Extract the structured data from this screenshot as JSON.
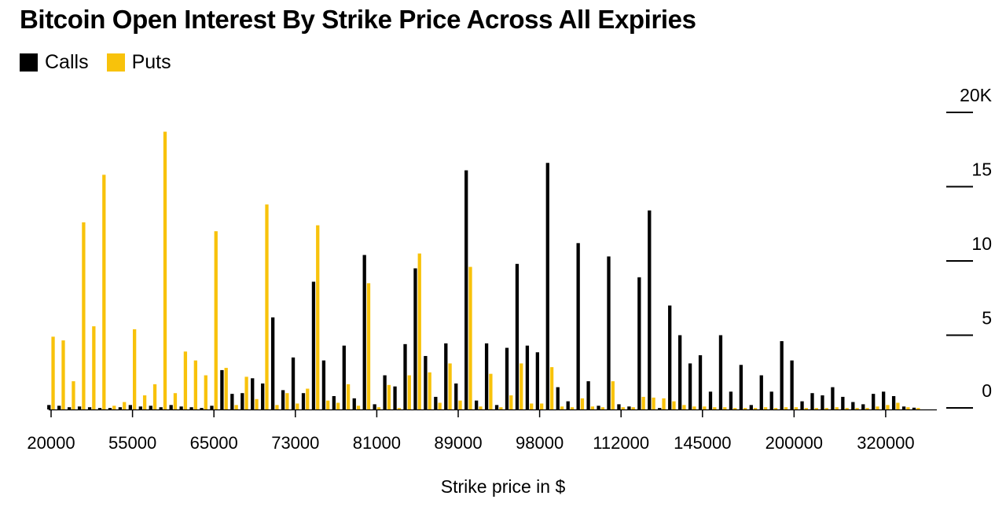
{
  "chart_data": {
    "type": "bar",
    "title": "Bitcoin Open Interest By Strike Price Across All Expiries",
    "xlabel": "Strike price in $",
    "ylabel": "",
    "value_unit": "K",
    "ylim": [
      0,
      20
    ],
    "grid": "off",
    "legend_position": "top-left",
    "y_ticks": [
      {
        "label": "20K",
        "value": 20
      },
      {
        "label": "15",
        "value": 15
      },
      {
        "label": "10",
        "value": 10
      },
      {
        "label": "5",
        "value": 5
      },
      {
        "label": "0",
        "value": 0
      }
    ],
    "x_tick_labels": [
      "20000",
      "55000",
      "65000",
      "73000",
      "81000",
      "89000",
      "98000",
      "112000",
      "145000",
      "200000",
      "320000"
    ],
    "x_tick_group_indices": [
      0,
      8,
      16,
      24,
      32,
      40,
      48,
      56,
      64,
      73,
      82
    ],
    "num_groups": 86,
    "legend": [
      {
        "label": "Calls",
        "color": "#000000"
      },
      {
        "label": "Puts",
        "color": "#F8C20B"
      }
    ],
    "series": [
      {
        "name": "Calls",
        "color": "#000000",
        "values": [
          0.3,
          0.25,
          0.15,
          0.2,
          0.15,
          0.1,
          0.1,
          0.15,
          0.3,
          0.2,
          0.25,
          0.15,
          0.3,
          0.2,
          0.15,
          0.1,
          0.25,
          2.65,
          1.05,
          1.1,
          2.1,
          1.75,
          6.2,
          1.3,
          3.5,
          1.1,
          8.6,
          3.3,
          0.9,
          4.3,
          0.75,
          10.4,
          0.35,
          2.3,
          1.55,
          4.4,
          9.5,
          3.6,
          0.85,
          4.45,
          1.75,
          16.1,
          0.6,
          4.45,
          0.3,
          4.15,
          9.8,
          4.3,
          3.85,
          16.6,
          1.5,
          0.55,
          11.2,
          1.9,
          0.25,
          10.3,
          0.35,
          0.2,
          8.9,
          13.4,
          0.1,
          7.0,
          5.0,
          3.1,
          3.65,
          1.2,
          5.0,
          1.2,
          3.0,
          0.3,
          2.3,
          1.2,
          4.6,
          3.3,
          0.55,
          1.1,
          0.95,
          1.5,
          0.85,
          0.5,
          0.35,
          1.05,
          1.2,
          0.9,
          0.2,
          0.12
        ]
      },
      {
        "name": "Puts",
        "color": "#F8C20B",
        "values": [
          4.9,
          4.65,
          1.9,
          12.6,
          5.6,
          15.8,
          0.25,
          0.5,
          5.4,
          0.95,
          1.7,
          18.7,
          1.1,
          3.9,
          3.3,
          2.3,
          12.0,
          2.8,
          0.3,
          2.2,
          0.7,
          13.8,
          0.3,
          1.1,
          0.4,
          1.4,
          12.4,
          0.6,
          0.45,
          1.7,
          0.25,
          8.5,
          0.15,
          1.65,
          0.1,
          2.3,
          10.5,
          2.5,
          0.45,
          3.1,
          0.6,
          9.6,
          0.2,
          2.4,
          0.15,
          0.95,
          3.1,
          0.4,
          0.4,
          2.85,
          0.2,
          0.15,
          0.75,
          0.2,
          0.15,
          1.9,
          0.15,
          0.15,
          0.85,
          0.8,
          0.75,
          0.55,
          0.3,
          0.2,
          0.2,
          0.15,
          0.15,
          0.1,
          0.1,
          0.1,
          0.15,
          0.1,
          0.15,
          0.15,
          0.1,
          0.1,
          0.1,
          0.15,
          0.1,
          0.1,
          0.1,
          0.2,
          0.3,
          0.45,
          0.15,
          0.1
        ]
      }
    ]
  }
}
